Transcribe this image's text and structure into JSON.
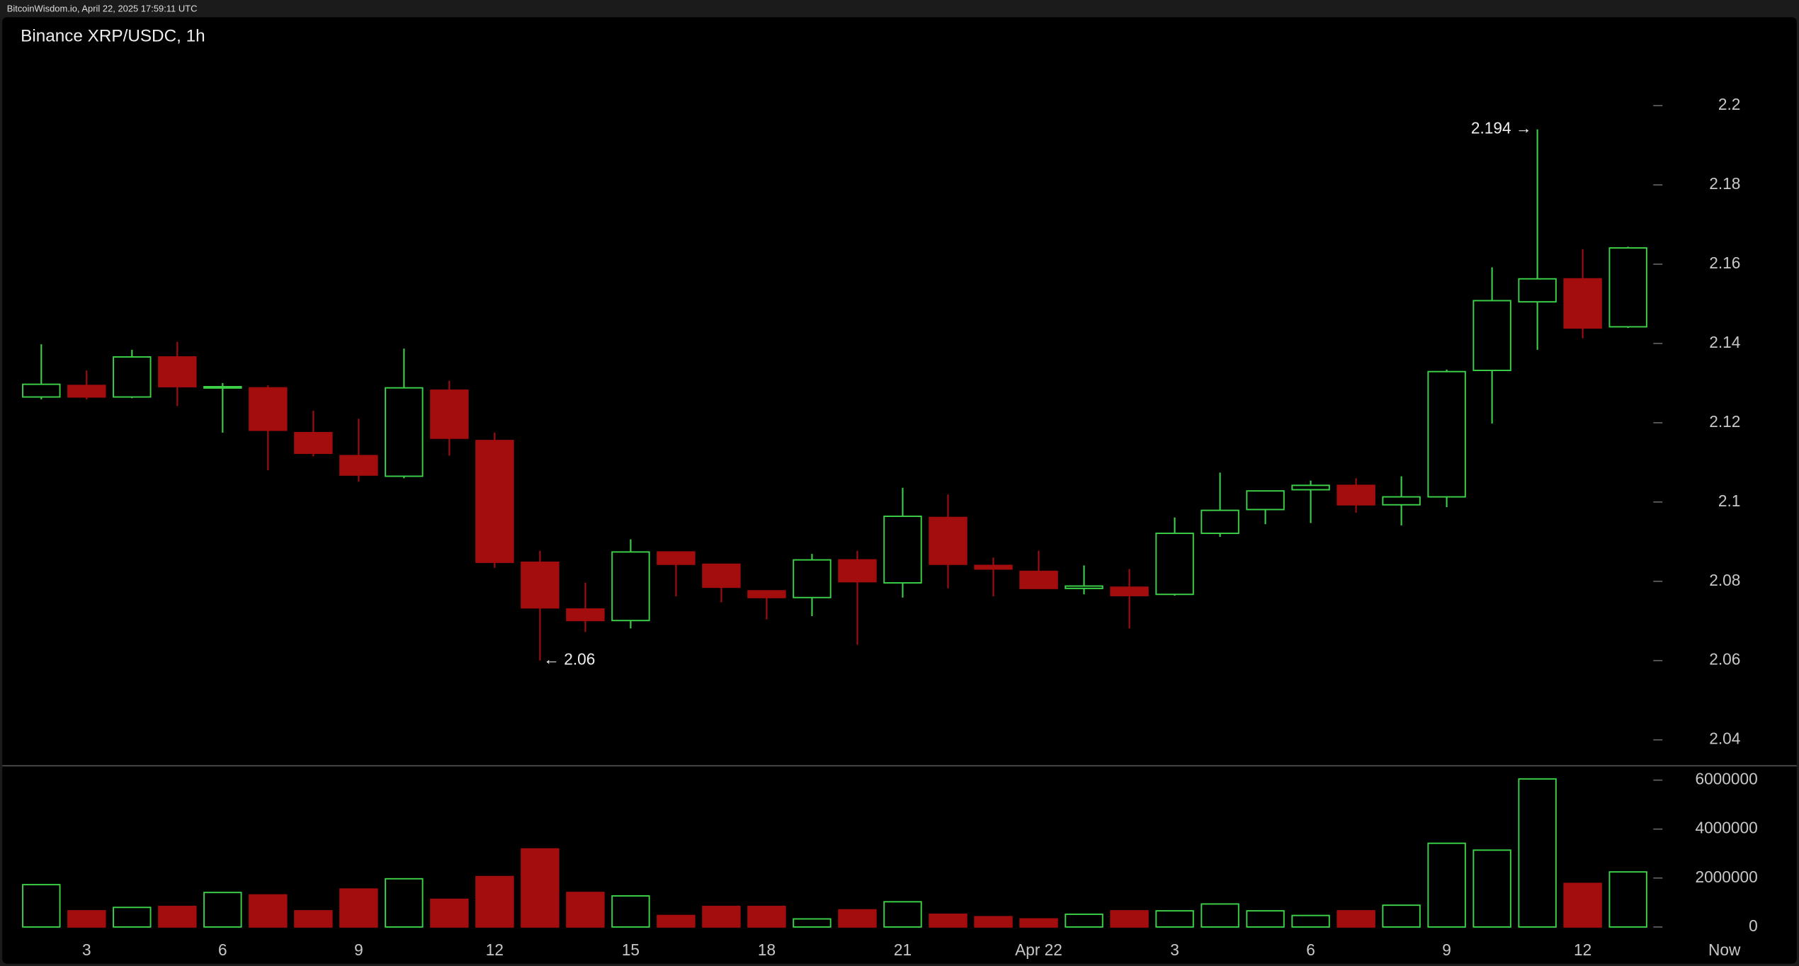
{
  "chart_data": {
    "type": "candlestick",
    "header": "BitcoinWisdom.io, April 22, 2025 17:59:11 UTC",
    "title": "Binance XRP/USDC, 1h",
    "categories": [
      null,
      "3",
      null,
      null,
      "6",
      null,
      null,
      "9",
      null,
      null,
      "12",
      null,
      null,
      "15",
      null,
      null,
      "18",
      null,
      null,
      "21",
      null,
      null,
      "Apr 22",
      null,
      null,
      "3",
      null,
      null,
      "6",
      null,
      null,
      "9",
      null,
      null,
      "12",
      null
    ],
    "now_label": "Now",
    "open": [
      2.1265,
      2.1294,
      2.1265,
      2.1366,
      2.1288,
      2.1288,
      2.1175,
      2.1117,
      2.1065,
      2.1282,
      2.1155,
      2.0848,
      2.073,
      2.0701,
      2.0874,
      2.0843,
      2.0776,
      2.0759,
      2.0854,
      2.0796,
      2.0961,
      2.084,
      2.0825,
      2.0782,
      2.0785,
      2.0767,
      2.0921,
      2.0981,
      2.1031,
      2.1042,
      2.0993,
      2.1013,
      2.1332,
      2.1505,
      2.1563,
      2.1442
    ],
    "high": [
      2.1398,
      2.1332,
      2.1384,
      2.1404,
      2.13,
      2.1294,
      2.123,
      2.121,
      2.1387,
      2.1306,
      2.1175,
      2.0877,
      2.0796,
      2.0906,
      2.0874,
      2.0843,
      2.0776,
      2.0869,
      2.0877,
      2.1036,
      2.1019,
      2.086,
      2.0877,
      2.084,
      2.0831,
      2.0961,
      2.1074,
      2.1028,
      2.1054,
      2.106,
      2.1065,
      2.1334,
      2.1592,
      2.194,
      2.1638,
      2.1644
    ],
    "low": [
      2.1259,
      2.1259,
      2.1262,
      2.1242,
      2.1175,
      2.108,
      2.1115,
      2.1051,
      2.106,
      2.1117,
      2.0834,
      2.06,
      2.0672,
      2.0681,
      2.0762,
      2.0747,
      2.0704,
      2.0712,
      2.064,
      2.0759,
      2.0782,
      2.0762,
      2.0782,
      2.0767,
      2.0681,
      2.0764,
      2.0912,
      2.0944,
      2.0947,
      2.0973,
      2.0941,
      2.0987,
      2.1198,
      2.1384,
      2.1413,
      2.1439
    ],
    "close": [
      2.1297,
      2.1265,
      2.1366,
      2.1291,
      2.1291,
      2.1181,
      2.1123,
      2.1068,
      2.1288,
      2.1161,
      2.0848,
      2.0733,
      2.0701,
      2.0874,
      2.0843,
      2.0785,
      2.0759,
      2.0854,
      2.0799,
      2.0964,
      2.0843,
      2.0831,
      2.0782,
      2.0788,
      2.0764,
      2.0921,
      2.0979,
      2.1028,
      2.1042,
      2.0993,
      2.1013,
      2.1329,
      2.1508,
      2.1563,
      2.1439,
      2.1641
    ],
    "volume": [
      1730000,
      660000,
      800000,
      840000,
      1410000,
      1310000,
      660000,
      1550000,
      1970000,
      1130000,
      2060000,
      3190000,
      1410000,
      1270000,
      470000,
      840000,
      840000,
      330000,
      700000,
      1030000,
      520000,
      420000,
      330000,
      520000,
      660000,
      660000,
      940000,
      660000,
      470000,
      660000,
      890000,
      3420000,
      3140000,
      6050000,
      1780000,
      2250000
    ],
    "up_color": "#3ccf48",
    "down_color": "#a30d0d",
    "high_label": "2.194 →",
    "low_label": "← 2.06",
    "ylim": [
      2.0336,
      2.2223
    ],
    "yticks": [
      2.04,
      2.06,
      2.08,
      2.1,
      2.12,
      2.14,
      2.16,
      2.18,
      2.2
    ],
    "volume_lim": [
      -328000,
      6562500
    ],
    "volume_ticks": [
      0,
      2000000,
      4000000,
      6000000
    ]
  }
}
